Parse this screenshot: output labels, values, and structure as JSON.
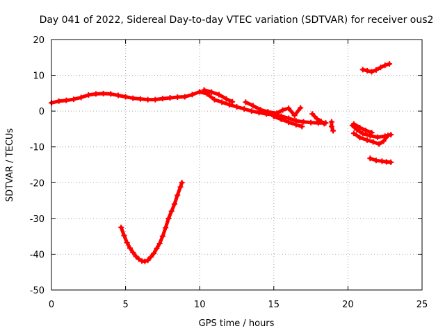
{
  "chart_data": {
    "type": "scatter",
    "title": "Day 041 of 2022, Sidereal Day-to-day VTEC variation (SDTVAR) for receiver ous2",
    "xlabel": "GPS time / hours",
    "ylabel": "SDTVAR / TECUs",
    "xlim": [
      0,
      25
    ],
    "ylim": [
      -50,
      20
    ],
    "xticks": [
      0,
      5,
      10,
      15,
      20,
      25
    ],
    "yticks": [
      -50,
      -40,
      -30,
      -20,
      -10,
      0,
      10,
      20
    ],
    "grid": true,
    "series_color": "#ff0000",
    "series": [
      {
        "name": "main-band",
        "points": [
          [
            0.0,
            2.3
          ],
          [
            0.5,
            2.8
          ],
          [
            1.0,
            3.0
          ],
          [
            1.5,
            3.3
          ],
          [
            2.0,
            3.8
          ],
          [
            2.5,
            4.5
          ],
          [
            3.0,
            4.8
          ],
          [
            3.5,
            4.9
          ],
          [
            4.0,
            4.8
          ],
          [
            4.5,
            4.4
          ],
          [
            5.0,
            4.0
          ],
          [
            5.5,
            3.6
          ],
          [
            6.0,
            3.4
          ],
          [
            6.5,
            3.2
          ],
          [
            7.0,
            3.2
          ],
          [
            7.5,
            3.5
          ],
          [
            8.0,
            3.7
          ],
          [
            8.5,
            3.9
          ],
          [
            9.0,
            4.0
          ],
          [
            9.5,
            4.6
          ],
          [
            10.0,
            5.4
          ],
          [
            10.5,
            4.8
          ],
          [
            11.0,
            3.2
          ],
          [
            11.5,
            2.5
          ],
          [
            12.0,
            1.8
          ],
          [
            12.5,
            1.2
          ],
          [
            13.0,
            0.6
          ],
          [
            13.5,
            0.0
          ],
          [
            14.0,
            -0.4
          ],
          [
            14.5,
            -0.8
          ],
          [
            15.0,
            -1.0
          ],
          [
            15.5,
            -1.4
          ],
          [
            16.0,
            -2.0
          ],
          [
            16.5,
            -2.7
          ],
          [
            17.0,
            -3.0
          ],
          [
            17.5,
            -3.2
          ],
          [
            18.0,
            -3.3
          ],
          [
            18.5,
            -3.3
          ]
        ]
      },
      {
        "name": "upper-band-segment",
        "points": [
          [
            10.3,
            5.9
          ],
          [
            10.8,
            5.3
          ],
          [
            11.3,
            4.6
          ],
          [
            11.8,
            3.4
          ],
          [
            12.2,
            2.6
          ]
        ]
      },
      {
        "name": "late-band-upper",
        "points": [
          [
            13.1,
            2.5
          ],
          [
            13.6,
            1.5
          ],
          [
            14.1,
            0.4
          ],
          [
            14.6,
            -0.2
          ],
          [
            15.2,
            -0.6
          ],
          [
            15.6,
            0.3
          ],
          [
            16.0,
            0.8
          ],
          [
            16.4,
            -1.2
          ],
          [
            16.8,
            0.9
          ]
        ]
      },
      {
        "name": "late-band-lower",
        "points": [
          [
            15.0,
            -1.5
          ],
          [
            15.5,
            -2.3
          ],
          [
            16.0,
            -3.1
          ],
          [
            16.5,
            -3.8
          ],
          [
            16.9,
            -4.3
          ]
        ]
      },
      {
        "name": "small-segment-a",
        "points": [
          [
            17.6,
            -0.8
          ],
          [
            17.9,
            -2.1
          ],
          [
            18.2,
            -2.9
          ],
          [
            18.4,
            -3.5
          ]
        ]
      },
      {
        "name": "small-segment-b",
        "points": [
          [
            18.9,
            -3.0
          ],
          [
            18.9,
            -4.3
          ],
          [
            19.0,
            -5.5
          ]
        ]
      },
      {
        "name": "evening-cluster",
        "points": [
          [
            20.3,
            -4.0
          ],
          [
            20.6,
            -5.2
          ],
          [
            21.0,
            -6.3
          ],
          [
            21.5,
            -6.9
          ],
          [
            22.0,
            -7.3
          ],
          [
            22.5,
            -7.0
          ],
          [
            22.9,
            -6.6
          ]
        ]
      },
      {
        "name": "evening-cluster-lower",
        "points": [
          [
            20.4,
            -6.2
          ],
          [
            20.8,
            -7.4
          ],
          [
            21.3,
            -8.1
          ],
          [
            21.7,
            -8.6
          ],
          [
            22.1,
            -9.2
          ],
          [
            22.4,
            -8.4
          ],
          [
            22.7,
            -6.8
          ]
        ]
      },
      {
        "name": "evening-cluster-upper",
        "points": [
          [
            20.4,
            -3.6
          ],
          [
            20.8,
            -4.6
          ],
          [
            21.2,
            -5.4
          ],
          [
            21.6,
            -6.0
          ]
        ]
      },
      {
        "name": "high-segment",
        "points": [
          [
            21.0,
            11.6
          ],
          [
            21.3,
            11.3
          ],
          [
            21.6,
            11.0
          ],
          [
            21.9,
            11.5
          ],
          [
            22.2,
            12.2
          ],
          [
            22.5,
            12.8
          ],
          [
            22.8,
            13.2
          ]
        ]
      },
      {
        "name": "low-segment",
        "points": [
          [
            21.5,
            -13.2
          ],
          [
            21.9,
            -13.8
          ],
          [
            22.3,
            -14.0
          ],
          [
            22.6,
            -14.2
          ],
          [
            22.9,
            -14.3
          ]
        ]
      },
      {
        "name": "deep-dip",
        "points": [
          [
            4.7,
            -32.5
          ],
          [
            4.9,
            -34.8
          ],
          [
            5.1,
            -36.8
          ],
          [
            5.3,
            -38.3
          ],
          [
            5.5,
            -39.5
          ],
          [
            5.7,
            -40.6
          ],
          [
            5.9,
            -41.4
          ],
          [
            6.1,
            -41.9
          ],
          [
            6.3,
            -42.0
          ],
          [
            6.5,
            -41.7
          ],
          [
            6.7,
            -40.8
          ],
          [
            6.9,
            -39.8
          ],
          [
            7.1,
            -38.4
          ],
          [
            7.3,
            -37.0
          ],
          [
            7.5,
            -35.0
          ],
          [
            7.7,
            -32.6
          ],
          [
            7.9,
            -30.0
          ],
          [
            8.1,
            -28.0
          ],
          [
            8.3,
            -26.0
          ],
          [
            8.5,
            -23.5
          ],
          [
            8.7,
            -21.2
          ],
          [
            8.8,
            -20.0
          ]
        ]
      }
    ]
  }
}
